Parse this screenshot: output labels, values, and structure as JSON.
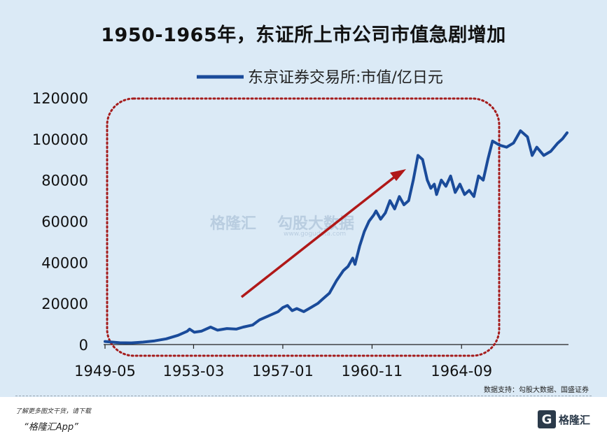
{
  "title": "1950-1965年，东证所上市公司市值急剧增加",
  "source_note": "数据支持：勾股大数据、国盛证券",
  "footer": {
    "line1": "了解更多图文干货，请下载",
    "line2": "“格隆汇App”",
    "logo_text": "格隆汇",
    "logo_mark": "G"
  },
  "watermark": {
    "brand": "格隆汇",
    "data": "勾股大数据",
    "domain": "www.gogudata.com"
  },
  "colors": {
    "background": "#dbeaf6",
    "series": "#1a4b9a",
    "arrow": "#b01818",
    "highlight": "#a51c1c"
  },
  "chart_data": {
    "type": "line",
    "title": "1950-1965年，东证所上市公司市值急剧增加",
    "xlabel": "",
    "ylabel": "",
    "ylim": [
      0,
      120000
    ],
    "yticks": [
      0,
      20000,
      40000,
      60000,
      80000,
      100000,
      120000
    ],
    "ytick_labels": [
      "0",
      "20000",
      "40000",
      "60000",
      "80000",
      "100000",
      "120000"
    ],
    "xtick_labels": [
      "1949-05",
      "1953-03",
      "1957-01",
      "1960-11",
      "1964-09"
    ],
    "xtick_years": [
      1949.37,
      1953.17,
      1957.0,
      1960.83,
      1964.67
    ],
    "grid": false,
    "legend": "top",
    "series": [
      {
        "name": "东京证券交易所:市值/亿日元",
        "x": [
          1949.37,
          1950.0,
          1950.5,
          1951.0,
          1951.5,
          1952.0,
          1952.5,
          1952.9,
          1953.0,
          1953.2,
          1953.5,
          1953.9,
          1954.2,
          1954.6,
          1955.0,
          1955.3,
          1955.7,
          1956.0,
          1956.4,
          1956.8,
          1957.0,
          1957.2,
          1957.4,
          1957.6,
          1957.9,
          1958.2,
          1958.5,
          1958.7,
          1959.0,
          1959.3,
          1959.6,
          1959.8,
          1960.0,
          1960.1,
          1960.3,
          1960.5,
          1960.7,
          1960.9,
          1961.0,
          1961.2,
          1961.4,
          1961.6,
          1961.8,
          1962.0,
          1962.2,
          1962.4,
          1962.6,
          1962.8,
          1963.0,
          1963.2,
          1963.35,
          1963.5,
          1963.6,
          1963.8,
          1964.0,
          1964.2,
          1964.4,
          1964.6,
          1964.8,
          1965.0,
          1965.2,
          1965.4,
          1965.6,
          1965.8,
          1966.0,
          1966.3,
          1966.6,
          1966.9,
          1967.2,
          1967.5,
          1967.7,
          1967.9,
          1968.2,
          1968.5,
          1968.8,
          1969.0,
          1969.2
        ],
        "values": [
          1500,
          900,
          800,
          1200,
          1800,
          2800,
          4500,
          6500,
          7500,
          6000,
          6500,
          8500,
          7000,
          7800,
          7500,
          8500,
          9500,
          12000,
          14000,
          16000,
          18000,
          19000,
          16500,
          17500,
          16000,
          18000,
          20000,
          22000,
          25000,
          31000,
          36000,
          38000,
          42000,
          39000,
          48000,
          55000,
          60000,
          63000,
          65000,
          61000,
          64000,
          70000,
          66000,
          72000,
          68000,
          70000,
          80000,
          92000,
          90000,
          80000,
          76000,
          78000,
          73000,
          80000,
          77000,
          82000,
          74000,
          78000,
          73000,
          75000,
          72000,
          82000,
          80000,
          90000,
          99000,
          97000,
          96000,
          98000,
          104000,
          101000,
          92000,
          96000,
          92000,
          94000,
          98000,
          100000,
          103000
        ]
      }
    ],
    "annotations": [
      "dotted rounded rectangle highlighting 1949-1965",
      "red arrow indicating upward trend"
    ]
  }
}
